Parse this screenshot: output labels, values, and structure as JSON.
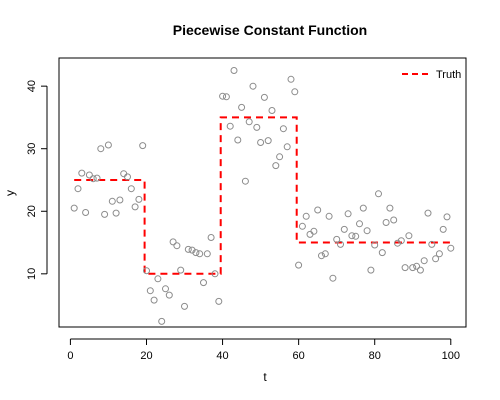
{
  "chart_data": {
    "type": "scatter",
    "title": "Piecewise Constant Function",
    "xlabel": "t",
    "ylabel": "y",
    "xlim": [
      -3,
      104
    ],
    "ylim": [
      1.5,
      44.5
    ],
    "xticks": [
      0,
      20,
      40,
      60,
      80,
      100
    ],
    "yticks": [
      10,
      20,
      30,
      40
    ],
    "grid": false,
    "legend": {
      "position": "top-right",
      "entries": [
        "Truth"
      ]
    },
    "colors": {
      "points": "#8c8c8c",
      "truth": "#ff0000",
      "axis": "#000000"
    },
    "truth": [
      {
        "x": 1,
        "y": 25
      },
      {
        "x": 19.5,
        "y": 25
      },
      {
        "x": 19.5,
        "y": 10
      },
      {
        "x": 39.5,
        "y": 10
      },
      {
        "x": 39.5,
        "y": 35
      },
      {
        "x": 59.5,
        "y": 35
      },
      {
        "x": 59.5,
        "y": 15
      },
      {
        "x": 100,
        "y": 15
      }
    ],
    "points": [
      [
        1,
        20.5
      ],
      [
        2,
        23.6
      ],
      [
        3,
        26.1
      ],
      [
        4,
        19.8
      ],
      [
        5,
        25.8
      ],
      [
        6,
        25.2
      ],
      [
        7,
        25.3
      ],
      [
        8,
        30.0
      ],
      [
        9,
        19.5
      ],
      [
        10,
        30.6
      ],
      [
        11,
        21.6
      ],
      [
        12,
        19.7
      ],
      [
        13,
        21.8
      ],
      [
        14,
        26.0
      ],
      [
        15,
        25.5
      ],
      [
        16,
        23.6
      ],
      [
        17,
        20.7
      ],
      [
        18,
        21.9
      ],
      [
        19,
        30.5
      ],
      [
        20,
        10.5
      ],
      [
        21,
        7.3
      ],
      [
        22,
        5.8
      ],
      [
        23,
        9.2
      ],
      [
        24,
        2.4
      ],
      [
        25,
        7.6
      ],
      [
        26,
        6.6
      ],
      [
        27,
        15.1
      ],
      [
        28,
        14.5
      ],
      [
        29,
        10.6
      ],
      [
        30,
        4.8
      ],
      [
        31,
        13.9
      ],
      [
        32,
        13.8
      ],
      [
        33,
        13.4
      ],
      [
        34,
        13.2
      ],
      [
        35,
        8.6
      ],
      [
        36,
        13.2
      ],
      [
        37,
        15.8
      ],
      [
        38,
        10.0
      ],
      [
        39,
        5.6
      ],
      [
        40,
        38.4
      ],
      [
        41,
        38.3
      ],
      [
        42,
        33.6
      ],
      [
        43,
        42.5
      ],
      [
        44,
        31.4
      ],
      [
        45,
        36.6
      ],
      [
        46,
        24.8
      ],
      [
        47,
        34.3
      ],
      [
        48,
        40.0
      ],
      [
        49,
        33.4
      ],
      [
        50,
        31.0
      ],
      [
        51,
        38.2
      ],
      [
        52,
        31.3
      ],
      [
        53,
        36.1
      ],
      [
        54,
        27.3
      ],
      [
        55,
        28.7
      ],
      [
        56,
        33.2
      ],
      [
        57,
        30.3
      ],
      [
        58,
        41.1
      ],
      [
        59,
        39.1
      ],
      [
        60,
        11.4
      ],
      [
        61,
        17.6
      ],
      [
        62,
        19.2
      ],
      [
        63,
        16.3
      ],
      [
        64,
        16.8
      ],
      [
        65,
        20.2
      ],
      [
        66,
        12.9
      ],
      [
        67,
        13.2
      ],
      [
        68,
        19.2
      ],
      [
        69,
        9.3
      ],
      [
        70,
        15.5
      ],
      [
        71,
        14.7
      ],
      [
        72,
        17.1
      ],
      [
        73,
        19.6
      ],
      [
        74,
        16.1
      ],
      [
        75,
        16.0
      ],
      [
        76,
        18.0
      ],
      [
        77,
        20.5
      ],
      [
        78,
        16.9
      ],
      [
        79,
        10.6
      ],
      [
        80,
        14.6
      ],
      [
        81,
        22.8
      ],
      [
        82,
        13.4
      ],
      [
        83,
        18.2
      ],
      [
        84,
        20.5
      ],
      [
        85,
        18.6
      ],
      [
        86,
        14.9
      ],
      [
        87,
        15.3
      ],
      [
        88,
        11.0
      ],
      [
        89,
        16.1
      ],
      [
        90,
        11.0
      ],
      [
        91,
        11.2
      ],
      [
        92,
        10.6
      ],
      [
        93,
        12.1
      ],
      [
        94,
        19.7
      ],
      [
        95,
        14.7
      ],
      [
        96,
        12.4
      ],
      [
        97,
        13.2
      ],
      [
        98,
        17.1
      ],
      [
        99,
        19.1
      ],
      [
        100,
        14.1
      ]
    ]
  }
}
